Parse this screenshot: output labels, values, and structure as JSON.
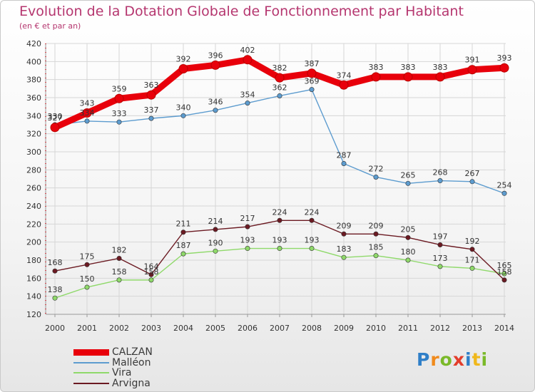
{
  "header": {
    "title": "Evolution de la Dotation Globale de Fonctionnement par Habitant",
    "subtitle": "(en € et par an)"
  },
  "logo": {
    "text": "Proxiti",
    "letters": [
      "P",
      "r",
      "o",
      "x",
      "i",
      "t",
      "i"
    ],
    "colors": [
      "#2f7fc8",
      "#f08a1c",
      "#7ab929",
      "#e33d2b",
      "#2f7fc8",
      "#f0b81c",
      "#7ab929"
    ]
  },
  "chart_data": {
    "type": "line",
    "title": "Evolution de la Dotation Globale de Fonctionnement par Habitant",
    "subtitle": "(en € et par an)",
    "xlabel": "",
    "ylabel": "",
    "x": [
      "2000",
      "2001",
      "2002",
      "2003",
      "2004",
      "2005",
      "2006",
      "2007",
      "2008",
      "2009",
      "2010",
      "2011",
      "2012",
      "2013",
      "2014"
    ],
    "ylim": [
      120,
      420
    ],
    "yticks": [
      120,
      140,
      160,
      180,
      200,
      220,
      240,
      260,
      280,
      300,
      320,
      340,
      360,
      380,
      400,
      420
    ],
    "grid": true,
    "legend_position": "bottom-left",
    "series": [
      {
        "name": "CALZAN",
        "color": "#e8000b",
        "values": [
          327,
          343,
          359,
          363,
          392,
          396,
          402,
          382,
          387,
          374,
          383,
          383,
          383,
          391,
          393
        ]
      },
      {
        "name": "Malléon",
        "color": "#5d9ccf",
        "values": [
          330,
          334,
          333,
          337,
          340,
          346,
          354,
          362,
          369,
          287,
          272,
          265,
          268,
          267,
          254
        ]
      },
      {
        "name": "Vira",
        "color": "#8fd96a",
        "values": [
          138,
          150,
          158,
          158,
          187,
          190,
          193,
          193,
          193,
          183,
          185,
          180,
          173,
          171,
          165
        ]
      },
      {
        "name": "Arvigna",
        "color": "#6b1a22",
        "values": [
          168,
          175,
          182,
          164,
          211,
          214,
          217,
          224,
          224,
          209,
          209,
          205,
          197,
          192,
          158
        ]
      }
    ]
  }
}
